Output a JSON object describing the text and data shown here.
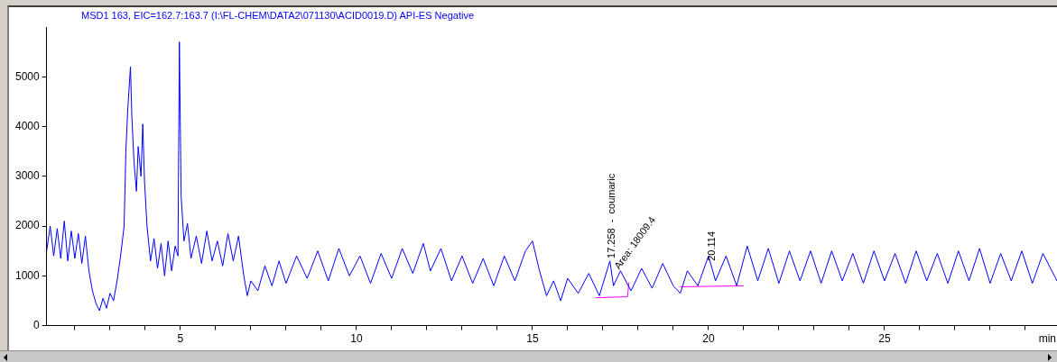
{
  "chart_data": {
    "type": "line",
    "title": "MSD1 163, EIC=162.7:163.7 (I:\\FL-CHEM\\DATA2\\071130\\ACID0019.D)  API-ES Negative",
    "xlabel": "min",
    "xlim": [
      1.2,
      29.9
    ],
    "ylim": [
      0,
      6000
    ],
    "xticks": [
      {
        "value": 2,
        "label": null
      },
      {
        "value": 3,
        "label": null
      },
      {
        "value": 4,
        "label": null
      },
      5,
      {
        "value": 6,
        "label": null
      },
      {
        "value": 7,
        "label": null
      },
      {
        "value": 8,
        "label": null
      },
      {
        "value": 9,
        "label": null
      },
      10,
      {
        "value": 11,
        "label": null
      },
      {
        "value": 12,
        "label": null
      },
      {
        "value": 13,
        "label": null
      },
      {
        "value": 14,
        "label": null
      },
      15,
      {
        "value": 16,
        "label": null
      },
      {
        "value": 17,
        "label": null
      },
      {
        "value": 18,
        "label": null
      },
      {
        "value": 19,
        "label": null
      },
      20,
      {
        "value": 21,
        "label": null
      },
      {
        "value": 22,
        "label": null
      },
      {
        "value": 23,
        "label": null
      },
      {
        "value": 24,
        "label": null
      },
      25,
      {
        "value": 26,
        "label": null
      },
      {
        "value": 27,
        "label": null
      },
      {
        "value": 28,
        "label": null
      },
      {
        "value": 29,
        "label": null
      }
    ],
    "yticks": [
      0,
      1000,
      2000,
      3000,
      4000,
      5000
    ],
    "grid": false,
    "legend": false,
    "marker": "none",
    "line_style": "solid",
    "series": [
      {
        "color": "#0000ff",
        "x": [
          1.2,
          1.3,
          1.4,
          1.5,
          1.6,
          1.7,
          1.8,
          1.9,
          2.0,
          2.1,
          2.2,
          2.3,
          2.4,
          2.5,
          2.6,
          2.7,
          2.8,
          2.9,
          3.0,
          3.1,
          3.2,
          3.3,
          3.4,
          3.45,
          3.5,
          3.58,
          3.62,
          3.68,
          3.75,
          3.8,
          3.88,
          3.93,
          3.98,
          4.05,
          4.15,
          4.25,
          4.35,
          4.45,
          4.55,
          4.65,
          4.75,
          4.85,
          4.93,
          4.97,
          5.02,
          5.1,
          5.2,
          5.3,
          5.45,
          5.6,
          5.75,
          5.9,
          6.05,
          6.2,
          6.35,
          6.5,
          6.65,
          6.8,
          6.9,
          7.0,
          7.2,
          7.4,
          7.6,
          7.8,
          8.0,
          8.3,
          8.6,
          8.9,
          9.2,
          9.5,
          9.8,
          10.1,
          10.4,
          10.7,
          11.0,
          11.3,
          11.6,
          11.9,
          12.1,
          12.4,
          12.7,
          13.0,
          13.3,
          13.6,
          13.9,
          14.2,
          14.5,
          14.8,
          15.0,
          15.2,
          15.4,
          15.6,
          15.8,
          16.0,
          16.3,
          16.6,
          16.9,
          17.2,
          17.3,
          17.5,
          17.8,
          18.1,
          18.4,
          18.7,
          19.0,
          19.2,
          19.4,
          19.7,
          20.0,
          20.2,
          20.5,
          20.8,
          21.1,
          21.4,
          21.7,
          22.0,
          22.3,
          22.6,
          22.9,
          23.2,
          23.5,
          23.8,
          24.1,
          24.4,
          24.7,
          25.0,
          25.3,
          25.6,
          25.9,
          26.2,
          26.5,
          26.8,
          27.1,
          27.4,
          27.7,
          28.0,
          28.3,
          28.6,
          28.9,
          29.2,
          29.5,
          29.9
        ],
        "values": [
          1500,
          2000,
          1400,
          1950,
          1350,
          2100,
          1300,
          1900,
          1350,
          1850,
          1250,
          1800,
          1100,
          700,
          450,
          300,
          550,
          350,
          650,
          500,
          900,
          1400,
          2000,
          3500,
          4300,
          5200,
          4200,
          3300,
          2700,
          3600,
          3000,
          4050,
          2900,
          2000,
          1300,
          1750,
          1150,
          1650,
          1000,
          1700,
          1100,
          1600,
          1400,
          5700,
          2600,
          1700,
          2050,
          1350,
          1800,
          1250,
          1900,
          1300,
          1700,
          1200,
          1850,
          1300,
          1800,
          1000,
          600,
          900,
          700,
          1200,
          800,
          1300,
          850,
          1400,
          950,
          1500,
          900,
          1550,
          1000,
          1400,
          850,
          1450,
          950,
          1550,
          1050,
          1650,
          1100,
          1550,
          900,
          1400,
          850,
          1350,
          800,
          1400,
          900,
          1500,
          1700,
          1100,
          600,
          900,
          500,
          950,
          650,
          1050,
          600,
          1300,
          800,
          1100,
          700,
          1150,
          750,
          1250,
          800,
          650,
          1100,
          800,
          1400,
          900,
          1400,
          800,
          1600,
          900,
          1550,
          850,
          1500,
          900,
          1500,
          850,
          1500,
          900,
          1450,
          850,
          1500,
          900,
          1450,
          850,
          1500,
          900,
          1450,
          850,
          1500,
          900,
          1550,
          850,
          1450,
          900,
          1500,
          850,
          1450,
          900
        ]
      },
      {
        "color": "#ff00ff",
        "x": [
          16.8,
          17.7,
          17.74
        ],
        "values": [
          560,
          580,
          870
        ]
      },
      {
        "color": "#ff00ff",
        "x": [
          19.2,
          21.0
        ],
        "values": [
          780,
          800
        ]
      }
    ],
    "annotations": [
      {
        "text": "17.258  -  coumaric",
        "x": 17.258,
        "y": 1350
      },
      {
        "text": "Area: 18009.4",
        "x": 17.4,
        "y": 1150
      },
      {
        "text": "20.114",
        "x": 20.114,
        "y": 1300
      }
    ]
  }
}
